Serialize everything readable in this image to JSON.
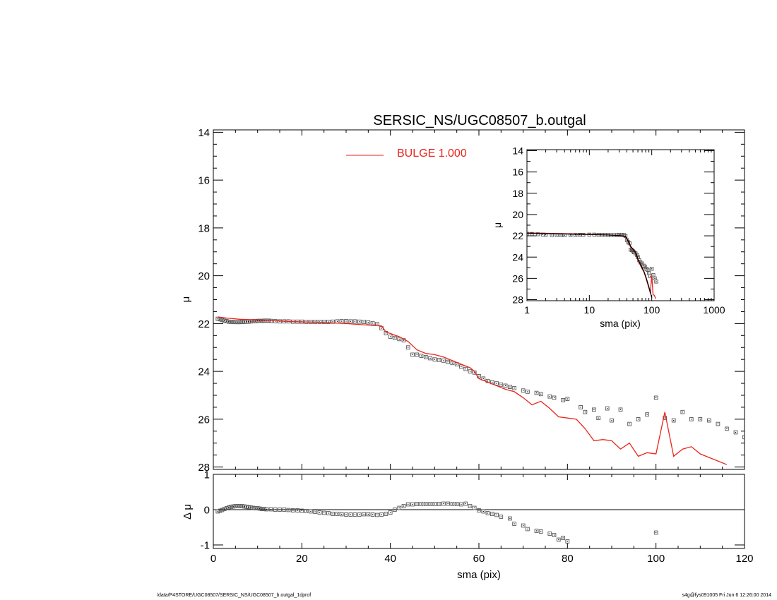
{
  "footer": {
    "path": "/data/P4STORE/UGC08507/SERSIC_NS/UGC08507_b.outgal_1dprof",
    "stamp": "s4g@fys091005  Fri Jun  6 12:26:00 2014"
  },
  "chart_data": [
    {
      "id": "main",
      "type": "scatter",
      "title": "SERSIC_NS/UGC08507_b.outgal",
      "xlabel": "",
      "ylabel": "μ",
      "xlim": [
        0,
        120
      ],
      "ylim": [
        28.1,
        13.9
      ],
      "y_inverted": true,
      "xticks": [
        0,
        20,
        40,
        60,
        80,
        100,
        120
      ],
      "yticks": [
        14,
        16,
        18,
        20,
        22,
        24,
        26,
        28
      ],
      "legend": [
        {
          "label": "BULGE  1.000",
          "color": "#e8261e",
          "placement": "top-center"
        }
      ],
      "series": [
        {
          "name": "data",
          "style": "square-markers",
          "color": "#555555",
          "x": [
            1,
            1.5,
            2,
            2.5,
            3,
            3.5,
            4,
            4.5,
            5,
            5.5,
            6,
            6.5,
            7,
            7.5,
            8,
            8.5,
            9,
            9.5,
            10,
            10.5,
            11,
            11.5,
            12,
            12.5,
            13,
            14,
            15,
            16,
            17,
            18,
            19,
            20,
            21,
            22,
            23,
            24,
            25,
            26,
            27,
            28,
            29,
            30,
            31,
            32,
            33,
            34,
            35,
            36,
            37,
            38,
            39,
            40,
            41,
            42,
            43,
            44,
            45,
            46,
            47,
            48,
            49,
            50,
            51,
            52,
            53,
            54,
            55,
            56,
            57,
            58,
            59,
            60,
            61,
            62,
            63,
            64,
            65,
            66,
            67,
            68,
            70,
            71,
            73,
            74,
            76,
            77,
            79,
            80,
            83,
            84,
            86,
            87,
            89,
            90,
            92,
            94,
            96,
            98,
            100,
            102,
            104,
            106,
            108,
            110,
            112,
            114,
            116,
            118,
            120
          ],
          "y": [
            21.8,
            21.82,
            21.85,
            21.88,
            21.9,
            21.92,
            21.93,
            21.93,
            21.94,
            21.94,
            21.94,
            21.93,
            21.93,
            21.92,
            21.92,
            21.91,
            21.9,
            21.9,
            21.89,
            21.89,
            21.89,
            21.88,
            21.88,
            21.88,
            21.89,
            21.9,
            21.91,
            21.91,
            21.91,
            21.92,
            21.92,
            21.92,
            21.93,
            21.93,
            21.93,
            21.93,
            21.93,
            21.93,
            21.92,
            21.91,
            21.9,
            21.9,
            21.91,
            21.91,
            21.92,
            21.93,
            21.95,
            21.98,
            22.02,
            22.2,
            22.4,
            22.55,
            22.6,
            22.65,
            22.7,
            23.0,
            23.3,
            23.3,
            23.35,
            23.4,
            23.45,
            23.5,
            23.52,
            23.55,
            23.6,
            23.65,
            23.7,
            23.8,
            23.9,
            24.0,
            24.05,
            24.2,
            24.3,
            24.4,
            24.45,
            24.5,
            24.55,
            24.6,
            24.65,
            24.7,
            24.8,
            24.85,
            24.9,
            24.95,
            25.05,
            25.1,
            25.2,
            25.15,
            25.5,
            25.7,
            25.6,
            25.95,
            25.55,
            26.05,
            25.6,
            26.2,
            26.0,
            25.8,
            25.1,
            25.95,
            26.05,
            25.7,
            26.0,
            26.0,
            26.05,
            26.2,
            26.4,
            26.55,
            26.75
          ]
        },
        {
          "name": "BULGE  1.000",
          "style": "line",
          "color": "#e8261e",
          "x": [
            1,
            3,
            6,
            10,
            14,
            18,
            24,
            30,
            34,
            38,
            39,
            42,
            44,
            46,
            48,
            50,
            52,
            54,
            56,
            58,
            59,
            60,
            62,
            64,
            66,
            68,
            70,
            72,
            74,
            76,
            78,
            80,
            82,
            84,
            86,
            88,
            90,
            92,
            94,
            96,
            98,
            100,
            102,
            104,
            106,
            108,
            110,
            112,
            114,
            116
          ],
          "y": [
            21.72,
            21.77,
            21.82,
            21.85,
            21.88,
            21.92,
            21.95,
            22.0,
            22.05,
            22.1,
            22.35,
            22.55,
            22.75,
            23.1,
            23.25,
            23.3,
            23.4,
            23.55,
            23.7,
            23.85,
            24.0,
            24.3,
            24.45,
            24.6,
            24.75,
            24.85,
            25.1,
            25.4,
            25.25,
            25.55,
            25.9,
            25.95,
            26.0,
            26.4,
            26.9,
            26.85,
            26.9,
            27.25,
            27.0,
            27.55,
            27.4,
            27.45,
            25.7,
            27.55,
            27.25,
            27.15,
            27.45,
            27.6,
            27.75,
            27.9
          ]
        }
      ]
    },
    {
      "id": "residual",
      "type": "scatter",
      "xlabel": "sma (pix)",
      "ylabel": "Δ μ",
      "xlim": [
        0,
        120
      ],
      "ylim": [
        -1.1,
        1.0
      ],
      "xticks": [
        0,
        20,
        40,
        60,
        80,
        100,
        120
      ],
      "yticks": [
        -1,
        0,
        1
      ],
      "reference_line": 0,
      "series": [
        {
          "name": "residual",
          "style": "square-markers",
          "color": "#555555",
          "x": [
            1,
            1.5,
            2,
            2.5,
            3,
            3.5,
            4,
            4.5,
            5,
            5.5,
            6,
            6.5,
            7,
            7.5,
            8,
            8.5,
            9,
            9.5,
            10,
            10.5,
            11,
            11.5,
            12,
            13,
            14,
            15,
            16,
            17,
            18,
            19,
            20,
            21,
            22,
            23,
            24,
            25,
            26,
            27,
            28,
            29,
            30,
            31,
            32,
            33,
            34,
            35,
            36,
            37,
            38,
            39,
            40,
            41,
            42,
            43,
            44,
            45,
            46,
            47,
            48,
            49,
            50,
            51,
            52,
            53,
            54,
            55,
            56,
            57,
            58,
            59,
            60,
            61,
            62,
            63,
            64,
            65,
            67,
            68,
            70,
            71,
            73,
            74,
            76,
            77,
            78,
            79,
            80,
            100
          ],
          "y": [
            -0.05,
            -0.03,
            -0.01,
            0.02,
            0.04,
            0.06,
            0.08,
            0.09,
            0.1,
            0.1,
            0.1,
            0.1,
            0.09,
            0.08,
            0.07,
            0.06,
            0.05,
            0.04,
            0.04,
            0.03,
            0.02,
            0.02,
            0.01,
            0.01,
            0.0,
            0.0,
            0.0,
            -0.01,
            -0.02,
            -0.02,
            -0.03,
            -0.04,
            -0.05,
            -0.06,
            -0.08,
            -0.09,
            -0.1,
            -0.12,
            -0.12,
            -0.13,
            -0.14,
            -0.14,
            -0.14,
            -0.14,
            -0.13,
            -0.13,
            -0.14,
            -0.15,
            -0.14,
            -0.12,
            -0.08,
            0.0,
            0.05,
            0.1,
            0.15,
            0.15,
            0.16,
            0.16,
            0.16,
            0.16,
            0.16,
            0.16,
            0.17,
            0.17,
            0.16,
            0.16,
            0.15,
            0.17,
            0.1,
            0.05,
            -0.02,
            -0.05,
            -0.1,
            -0.12,
            -0.15,
            -0.2,
            -0.25,
            -0.4,
            -0.45,
            -0.55,
            -0.6,
            -0.62,
            -0.68,
            -0.72,
            -0.85,
            -0.8,
            -0.9,
            -0.65
          ]
        }
      ]
    },
    {
      "id": "inset",
      "type": "scatter",
      "xlabel": "sma (pix)",
      "ylabel": "μ",
      "xscale": "log",
      "xlim": [
        1,
        1000
      ],
      "ylim": [
        28.1,
        13.9
      ],
      "y_inverted": true,
      "xticks": [
        1,
        10,
        100,
        1000
      ],
      "yticks": [
        14,
        16,
        18,
        20,
        22,
        24,
        26,
        28
      ],
      "series": [
        {
          "name": "data",
          "style": "square-markers",
          "color": "#555555",
          "x": [
            1,
            1.2,
            1.5,
            1.8,
            2,
            2.5,
            3,
            3.5,
            4,
            5,
            6,
            7,
            8,
            10,
            12,
            14,
            16,
            18,
            20,
            22,
            25,
            28,
            30,
            33,
            36,
            38,
            40,
            42,
            44,
            46,
            48,
            50,
            52,
            55,
            58,
            60,
            63,
            66,
            70,
            74,
            78,
            82,
            86,
            90,
            95,
            100,
            106,
            112,
            118
          ],
          "y": [
            21.8,
            21.82,
            21.85,
            21.88,
            21.9,
            21.92,
            21.93,
            21.93,
            21.94,
            21.93,
            21.92,
            21.91,
            21.9,
            21.89,
            21.89,
            21.9,
            21.91,
            21.91,
            21.92,
            21.93,
            21.93,
            21.92,
            21.9,
            21.91,
            21.93,
            22.02,
            22.4,
            22.6,
            22.7,
            23.3,
            23.35,
            23.45,
            23.55,
            23.65,
            23.8,
            24.0,
            24.3,
            24.5,
            24.6,
            24.8,
            24.9,
            25.1,
            25.2,
            25.5,
            25.8,
            25.1,
            25.7,
            26.0,
            26.3
          ]
        },
        {
          "name": "BULGE  1.000",
          "style": "line",
          "color": "#e8261e",
          "x": [
            1,
            3,
            6,
            10,
            20,
            30,
            38,
            42,
            46,
            50,
            55,
            60,
            65,
            70,
            75,
            80,
            85,
            90,
            95,
            100,
            105,
            110,
            116
          ],
          "y": [
            21.72,
            21.78,
            21.82,
            21.85,
            21.92,
            22.0,
            22.1,
            22.55,
            23.1,
            23.3,
            23.6,
            24.3,
            24.7,
            25.1,
            25.4,
            25.9,
            26.4,
            26.9,
            27.4,
            25.7,
            27.5,
            27.6,
            27.9
          ]
        },
        {
          "name": "model",
          "style": "line",
          "color": "#000000",
          "x": [
            1,
            3,
            6,
            10,
            20,
            30,
            38,
            42,
            46,
            50,
            55,
            60,
            65,
            70,
            75,
            80,
            85,
            90,
            95,
            100
          ],
          "y": [
            21.75,
            21.8,
            21.85,
            21.87,
            21.92,
            21.97,
            22.05,
            22.5,
            23.0,
            23.25,
            23.55,
            24.2,
            24.6,
            25.0,
            25.35,
            25.8,
            26.3,
            26.8,
            27.3,
            27.8
          ]
        }
      ]
    }
  ]
}
